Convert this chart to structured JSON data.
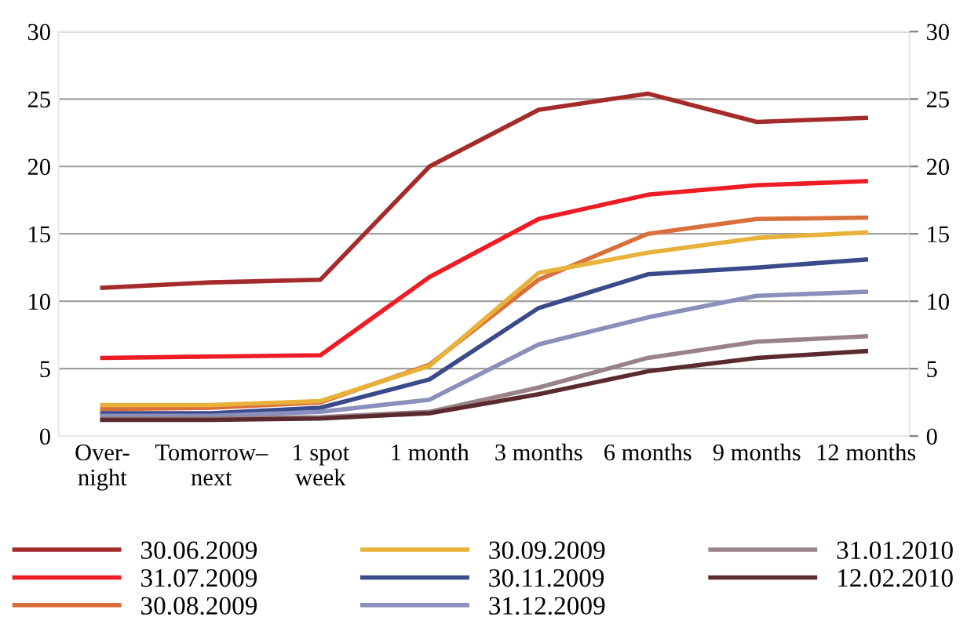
{
  "chart_data": {
    "type": "line",
    "categories": [
      "Over-\nnight",
      "Tomorrow–\nnext",
      "1 spot\nweek",
      "1 month",
      "3 months",
      "6 months",
      "9 months",
      "12 months"
    ],
    "ylim": [
      0,
      30
    ],
    "yticks": [
      0,
      5,
      10,
      15,
      20,
      25,
      30
    ],
    "y2lim": [
      0,
      30
    ],
    "y2ticks": [
      0,
      5,
      10,
      15,
      20,
      25,
      30
    ],
    "grid": "y",
    "legend": "bottom",
    "marker": "none",
    "line_style": "solid",
    "series": [
      {
        "name": "30.06.2009",
        "color": "#a52a2a",
        "values": [
          11.0,
          11.4,
          11.6,
          20.0,
          24.2,
          25.4,
          23.3,
          23.6
        ]
      },
      {
        "name": "31.07.2009",
        "color": "#ee1c25",
        "values": [
          5.8,
          5.9,
          6.0,
          11.8,
          16.1,
          17.9,
          18.6,
          18.9
        ]
      },
      {
        "name": "30.08.2009",
        "color": "#d9703c",
        "values": [
          2.0,
          2.1,
          2.5,
          5.3,
          11.6,
          15.0,
          16.1,
          16.2
        ]
      },
      {
        "name": "30.09.2009",
        "color": "#e8b23a",
        "values": [
          2.3,
          2.3,
          2.6,
          5.2,
          12.1,
          13.6,
          14.7,
          15.1
        ]
      },
      {
        "name": "30.11.2009",
        "color": "#3b4a8a",
        "values": [
          1.7,
          1.7,
          2.1,
          4.2,
          9.5,
          12.0,
          12.5,
          13.1
        ]
      },
      {
        "name": "31.12.2009",
        "color": "#8a8fbb",
        "values": [
          1.5,
          1.5,
          1.8,
          2.7,
          6.8,
          8.8,
          10.4,
          10.7
        ]
      },
      {
        "name": "31.01.2010",
        "color": "#9a8388",
        "values": [
          1.3,
          1.3,
          1.4,
          1.8,
          3.6,
          5.8,
          7.0,
          7.4
        ]
      },
      {
        "name": "12.02.2010",
        "color": "#5a2a30",
        "values": [
          1.2,
          1.2,
          1.3,
          1.7,
          3.1,
          4.8,
          5.8,
          6.3
        ]
      }
    ]
  }
}
